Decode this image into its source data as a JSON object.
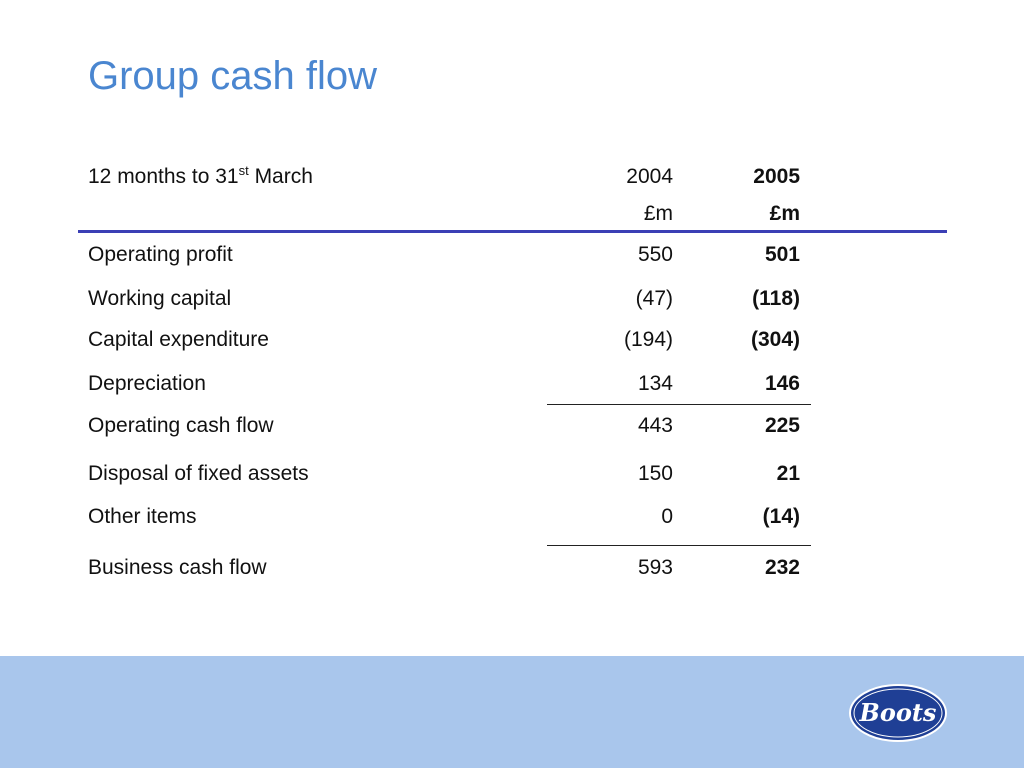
{
  "title": "Group cash flow",
  "header": {
    "label_main": "12 months to 31",
    "label_sup": "st",
    "label_tail": " March",
    "col_2004_year": "2004",
    "col_2005_year": "2005",
    "col_2004_unit": "£m",
    "col_2005_unit": "£m"
  },
  "rows": [
    {
      "label": "Operating profit",
      "v2004": "550",
      "v2005": "501"
    },
    {
      "label": "Working capital",
      "v2004": "(47)",
      "v2005": "(118)"
    },
    {
      "label": "Capital expenditure",
      "v2004": "(194)",
      "v2005": "(304)"
    },
    {
      "label": "Depreciation",
      "v2004": "134",
      "v2005": "146"
    },
    {
      "label": "Operating cash flow",
      "v2004": "443",
      "v2005": "225"
    },
    {
      "label": "Disposal of fixed assets",
      "v2004": "150",
      "v2005": "21"
    },
    {
      "label": "Other items",
      "v2004": "0",
      "v2005": "(14)"
    },
    {
      "label": "Business cash flow",
      "v2004": "593",
      "v2005": "232"
    }
  ],
  "logo": {
    "text": "Boots",
    "color": "#1f3f95"
  },
  "colors": {
    "title": "#4a86d0",
    "rule": "#3b3fb5",
    "footer": "#a9c6ec"
  }
}
